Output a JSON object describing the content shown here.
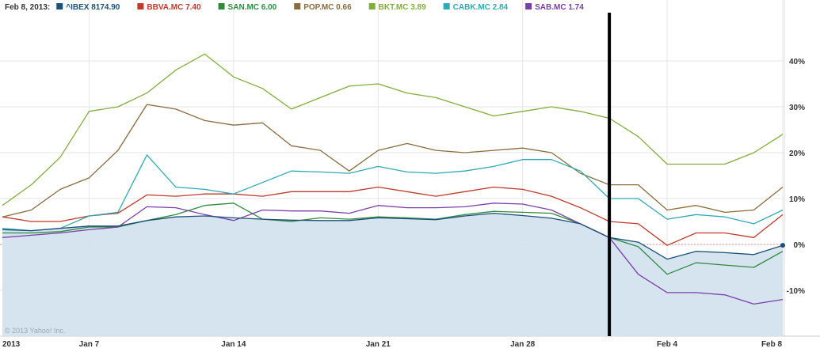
{
  "legend": {
    "date_label": "Feb 8, 2013:",
    "entries": [
      {
        "label": "^IBEX 8174.90",
        "color": "#1c4f7a"
      },
      {
        "label": "BBVA.MC 7.40",
        "color": "#c0392b"
      },
      {
        "label": "SAN.MC 6.00",
        "color": "#2e8b3e"
      },
      {
        "label": "POP.MC 0.66",
        "color": "#8b6b3d"
      },
      {
        "label": "BKT.MC 3.89",
        "color": "#7fae3a"
      },
      {
        "label": "CABK.MC 2.84",
        "color": "#2eaab5"
      },
      {
        "label": "SAB.MC 1.74",
        "color": "#7a3fa8"
      }
    ]
  },
  "watermark": "© 2013 Yahoo! Inc.",
  "chart_data": {
    "type": "line",
    "x": [
      "Jan 2",
      "Jan 3",
      "Jan 4",
      "Jan 7",
      "Jan 8",
      "Jan 9",
      "Jan 10",
      "Jan 11",
      "Jan 14",
      "Jan 15",
      "Jan 16",
      "Jan 17",
      "Jan 18",
      "Jan 21",
      "Jan 22",
      "Jan 23",
      "Jan 24",
      "Jan 25",
      "Jan 28",
      "Jan 29",
      "Jan 30",
      "Jan 31",
      "Feb 1",
      "Feb 4",
      "Feb 5",
      "Feb 6",
      "Feb 7",
      "Feb 8"
    ],
    "x_tick_labels": [
      "2013",
      "Jan 7",
      "Jan 14",
      "Jan 21",
      "Jan 28",
      "Feb 4",
      "Feb 8"
    ],
    "x_tick_positions": [
      "Jan 2",
      "Jan 7",
      "Jan 14",
      "Jan 21",
      "Jan 28",
      "Feb 4",
      "Feb 8"
    ],
    "y_unit": "%",
    "ylim": [
      -20,
      50
    ],
    "y_ticks": [
      40,
      30,
      20,
      10,
      0,
      -10
    ],
    "y_tick_labels": [
      "40%",
      "30%",
      "20%",
      "10%",
      "0%",
      "-10%"
    ],
    "grid": true,
    "legend_position": "top-left",
    "series": [
      {
        "name": "^IBEX",
        "color": "#1c4f7a",
        "filled": true,
        "values": [
          3.2,
          3.0,
          3.5,
          4.0,
          4.0,
          5.2,
          6.0,
          6.2,
          5.8,
          5.5,
          5.3,
          5.2,
          5.2,
          5.8,
          5.6,
          5.4,
          6.2,
          6.8,
          6.3,
          5.7,
          4.5,
          1.5,
          0.5,
          -3.2,
          -1.5,
          -1.8,
          -2.2,
          -0.2
        ]
      },
      {
        "name": "BBVA.MC",
        "color": "#c0392b",
        "values": [
          6.0,
          5.0,
          5.0,
          6.2,
          6.8,
          10.8,
          10.5,
          11.0,
          11.0,
          10.5,
          11.5,
          11.5,
          11.5,
          12.5,
          11.5,
          10.5,
          11.5,
          12.5,
          12.0,
          10.5,
          8.0,
          5.0,
          4.5,
          -0.2,
          2.5,
          2.5,
          1.5,
          6.5
        ]
      },
      {
        "name": "SAN.MC",
        "color": "#2e8b3e",
        "values": [
          2.5,
          2.5,
          2.8,
          3.8,
          3.8,
          5.2,
          6.5,
          8.5,
          9.0,
          5.5,
          5.0,
          5.8,
          5.5,
          6.0,
          5.8,
          5.5,
          6.5,
          7.2,
          7.0,
          6.8,
          4.5,
          1.5,
          -0.5,
          -6.5,
          -4.0,
          -4.5,
          -5.0,
          -1.5
        ]
      },
      {
        "name": "POP.MC",
        "color": "#8b6b3d",
        "values": [
          6.0,
          7.5,
          12.0,
          14.5,
          20.5,
          30.5,
          29.5,
          27.0,
          26.0,
          26.5,
          21.5,
          20.5,
          16.0,
          20.5,
          22.0,
          20.5,
          20.0,
          20.5,
          21.0,
          20.0,
          15.5,
          13.0,
          13.0,
          7.5,
          8.5,
          7.0,
          7.5,
          12.5
        ]
      },
      {
        "name": "BKT.MC",
        "color": "#7fae3a",
        "values": [
          8.5,
          13.0,
          19.0,
          29.0,
          30.0,
          33.0,
          38.0,
          41.5,
          36.5,
          34.0,
          29.5,
          32.0,
          34.5,
          35.0,
          33.0,
          32.0,
          30.0,
          28.0,
          29.0,
          30.0,
          29.0,
          27.5,
          23.5,
          17.5,
          17.5,
          17.5,
          20.0,
          24.0
        ]
      },
      {
        "name": "CABK.MC",
        "color": "#2eaab5",
        "values": [
          3.5,
          3.0,
          3.5,
          6.2,
          7.0,
          19.5,
          12.5,
          12.0,
          11.0,
          13.5,
          16.0,
          15.8,
          15.5,
          17.0,
          15.8,
          15.5,
          16.0,
          17.0,
          18.5,
          18.5,
          16.0,
          10.0,
          10.0,
          5.5,
          6.5,
          6.0,
          4.5,
          7.5
        ]
      },
      {
        "name": "SAB.MC",
        "color": "#7a3fa8",
        "values": [
          1.5,
          2.0,
          2.5,
          3.2,
          3.8,
          8.2,
          8.0,
          6.5,
          5.2,
          7.5,
          7.3,
          7.3,
          6.8,
          8.5,
          8.0,
          8.0,
          8.2,
          9.0,
          8.8,
          7.5,
          4.5,
          1.5,
          -6.5,
          -10.5,
          -10.5,
          -11.0,
          -13.0,
          -12.0
        ]
      }
    ],
    "annotations": [
      {
        "type": "vertical-line",
        "x": "Jan 31",
        "color": "#000000"
      }
    ]
  }
}
